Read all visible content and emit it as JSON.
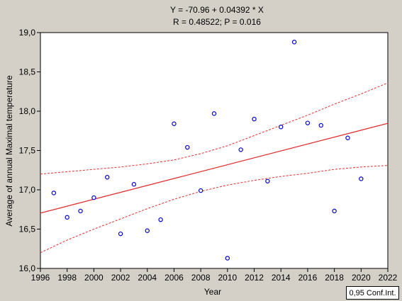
{
  "chart_data": {
    "type": "scatter",
    "title_line1": "Y = -70.96 + 0.04392 * X",
    "title_line2": "R = 0.48522; P = 0.016",
    "xlabel": "Year",
    "ylabel": "Average of annual Maximal temperature",
    "xlim": [
      1996,
      2022
    ],
    "ylim": [
      16.0,
      19.0
    ],
    "xticks": [
      "1996",
      "1998",
      "2000",
      "2002",
      "2004",
      "2006",
      "2008",
      "2010",
      "2012",
      "2014",
      "2016",
      "2018",
      "2020",
      "2022"
    ],
    "yticks": [
      "16,0",
      "16,5",
      "17,0",
      "17,5",
      "18,0",
      "18,5",
      "19,0"
    ],
    "grid": false,
    "points": [
      {
        "x": 1997,
        "y": 16.96
      },
      {
        "x": 1998,
        "y": 16.65
      },
      {
        "x": 1999,
        "y": 16.73
      },
      {
        "x": 2000,
        "y": 16.9
      },
      {
        "x": 2001,
        "y": 17.16
      },
      {
        "x": 2002,
        "y": 16.44
      },
      {
        "x": 2003,
        "y": 17.07
      },
      {
        "x": 2004,
        "y": 16.48
      },
      {
        "x": 2005,
        "y": 16.62
      },
      {
        "x": 2006,
        "y": 17.84
      },
      {
        "x": 2007,
        "y": 17.54
      },
      {
        "x": 2008,
        "y": 16.99
      },
      {
        "x": 2009,
        "y": 17.97
      },
      {
        "x": 2010,
        "y": 16.13
      },
      {
        "x": 2011,
        "y": 17.51
      },
      {
        "x": 2012,
        "y": 17.9
      },
      {
        "x": 2013,
        "y": 17.11
      },
      {
        "x": 2014,
        "y": 17.8
      },
      {
        "x": 2015,
        "y": 18.88
      },
      {
        "x": 2016,
        "y": 17.85
      },
      {
        "x": 2017,
        "y": 17.82
      },
      {
        "x": 2018,
        "y": 16.73
      },
      {
        "x": 2019,
        "y": 17.66
      },
      {
        "x": 2020,
        "y": 17.14
      }
    ],
    "regression": {
      "intercept": -70.96,
      "slope": 0.04392
    },
    "confidence_band": {
      "x": [
        1996,
        1998,
        2000,
        2002,
        2004,
        2006,
        2008,
        2010,
        2012,
        2014,
        2016,
        2018,
        2020,
        2022
      ],
      "upper": [
        17.2,
        17.23,
        17.26,
        17.29,
        17.33,
        17.38,
        17.46,
        17.56,
        17.69,
        17.82,
        17.95,
        18.09,
        18.22,
        18.36
      ],
      "lower": [
        16.2,
        16.36,
        16.5,
        16.63,
        16.76,
        16.88,
        16.98,
        17.06,
        17.12,
        17.17,
        17.21,
        17.26,
        17.29,
        17.31
      ]
    },
    "legend": "0,95 Conf.Int.",
    "colors": {
      "line": "#e03030",
      "points": "#0000cc",
      "background": "#d4d0c8",
      "plot_bg": "#ffffff"
    }
  }
}
